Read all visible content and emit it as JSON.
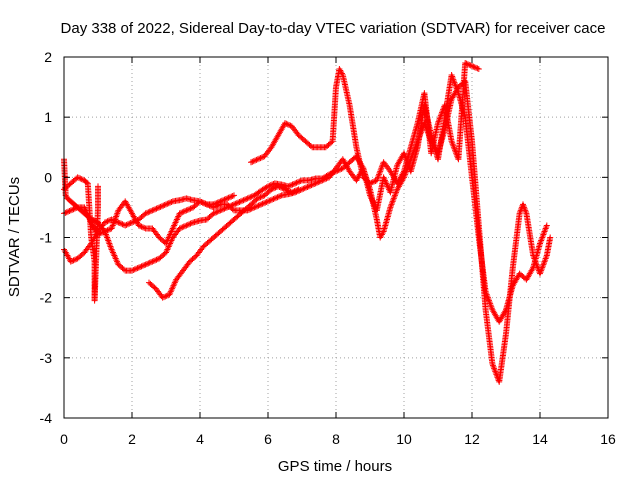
{
  "chart_data": {
    "type": "scatter",
    "title": "Day 338 of 2022, Sidereal Day-to-day VTEC variation (SDTVAR) for receiver cace",
    "xlabel": "GPS time / hours",
    "ylabel": "SDTVAR / TECUs",
    "xlim": [
      0,
      16
    ],
    "ylim": [
      -4,
      2
    ],
    "xticks": [
      0,
      2,
      4,
      6,
      8,
      10,
      12,
      14,
      16
    ],
    "yticks": [
      -4,
      -3,
      -2,
      -1,
      0,
      1,
      2
    ],
    "grid": true,
    "marker": "plus",
    "color": "#ff0000",
    "series": [
      {
        "values": [
          [
            0.0,
            0.3
          ],
          [
            0.05,
            -0.3
          ],
          [
            0.1,
            -0.35
          ],
          [
            0.2,
            -0.4
          ],
          [
            0.3,
            -0.45
          ],
          [
            0.4,
            -0.5
          ],
          [
            0.5,
            -0.55
          ],
          [
            0.6,
            -0.6
          ],
          [
            0.7,
            -0.65
          ],
          [
            0.8,
            -0.7
          ],
          [
            0.9,
            -0.72
          ],
          [
            1.0,
            -0.75
          ],
          [
            1.2,
            -0.9
          ],
          [
            1.4,
            -1.2
          ],
          [
            1.6,
            -1.45
          ],
          [
            1.8,
            -1.55
          ],
          [
            2.0,
            -1.55
          ],
          [
            2.2,
            -1.5
          ],
          [
            2.4,
            -1.45
          ],
          [
            2.6,
            -1.4
          ],
          [
            2.8,
            -1.35
          ],
          [
            3.0,
            -1.25
          ],
          [
            3.2,
            -1.0
          ],
          [
            3.4,
            -0.85
          ],
          [
            3.6,
            -0.8
          ],
          [
            3.8,
            -0.75
          ],
          [
            4.0,
            -0.72
          ],
          [
            4.2,
            -0.7
          ],
          [
            4.4,
            -0.6
          ],
          [
            4.6,
            -0.55
          ],
          [
            4.8,
            -0.5
          ],
          [
            5.0,
            -0.45
          ],
          [
            5.2,
            -0.4
          ],
          [
            5.4,
            -0.35
          ],
          [
            5.6,
            -0.3
          ],
          [
            5.8,
            -0.22
          ],
          [
            6.0,
            -0.15
          ],
          [
            6.2,
            -0.1
          ],
          [
            6.4,
            -0.12
          ],
          [
            6.6,
            -0.15
          ],
          [
            6.8,
            -0.1
          ],
          [
            7.0,
            -0.05
          ],
          [
            7.2,
            -0.05
          ],
          [
            7.4,
            -0.02
          ],
          [
            7.6,
            -0.02
          ],
          [
            7.8,
            0.05
          ],
          [
            8.0,
            0.1
          ],
          [
            8.2,
            0.15
          ],
          [
            8.4,
            0.25
          ],
          [
            8.6,
            0.35
          ],
          [
            8.8,
            0.15
          ],
          [
            9.0,
            -0.2
          ],
          [
            9.2,
            -0.7
          ],
          [
            9.3,
            -1.0
          ],
          [
            9.4,
            -0.9
          ],
          [
            9.6,
            -0.5
          ],
          [
            9.8,
            -0.2
          ],
          [
            10.0,
            0.0
          ],
          [
            10.2,
            0.3
          ],
          [
            10.4,
            0.6
          ],
          [
            10.6,
            0.9
          ],
          [
            10.8,
            0.6
          ],
          [
            11.0,
            0.4
          ],
          [
            11.2,
            0.8
          ],
          [
            11.4,
            1.3
          ],
          [
            11.6,
            1.5
          ],
          [
            11.8,
            1.6
          ],
          [
            12.0,
            0.6
          ],
          [
            12.2,
            -0.8
          ],
          [
            12.4,
            -2.2
          ],
          [
            12.6,
            -3.1
          ],
          [
            12.8,
            -3.4
          ],
          [
            13.0,
            -2.6
          ],
          [
            13.2,
            -1.5
          ],
          [
            13.4,
            -0.6
          ],
          [
            13.5,
            -0.45
          ],
          [
            13.6,
            -0.6
          ],
          [
            13.8,
            -1.3
          ],
          [
            14.0,
            -1.6
          ],
          [
            14.2,
            -1.3
          ],
          [
            14.3,
            -1.0
          ]
        ]
      },
      {
        "values": [
          [
            0.0,
            -0.6
          ],
          [
            0.2,
            -0.55
          ],
          [
            0.4,
            -0.5
          ],
          [
            0.6,
            -0.5
          ],
          [
            0.8,
            -0.75
          ],
          [
            1.0,
            -0.95
          ],
          [
            1.2,
            -0.9
          ],
          [
            1.4,
            -0.85
          ],
          [
            1.6,
            -0.55
          ],
          [
            1.8,
            -0.4
          ],
          [
            2.0,
            -0.6
          ],
          [
            2.2,
            -0.8
          ],
          [
            2.4,
            -0.85
          ],
          [
            2.6,
            -0.85
          ],
          [
            2.8,
            -1.0
          ],
          [
            3.0,
            -1.1
          ],
          [
            3.2,
            -0.85
          ],
          [
            3.4,
            -0.6
          ],
          [
            3.6,
            -0.55
          ],
          [
            3.8,
            -0.5
          ],
          [
            4.0,
            -0.4
          ],
          [
            4.2,
            -0.45
          ],
          [
            4.4,
            -0.5
          ],
          [
            4.6,
            -0.45
          ],
          [
            4.8,
            -0.45
          ],
          [
            5.0,
            -0.55
          ],
          [
            5.2,
            -0.55
          ],
          [
            5.4,
            -0.55
          ],
          [
            5.6,
            -0.5
          ],
          [
            5.8,
            -0.45
          ],
          [
            6.0,
            -0.4
          ],
          [
            6.2,
            -0.35
          ],
          [
            6.4,
            -0.3
          ],
          [
            6.6,
            -0.28
          ],
          [
            6.8,
            -0.25
          ],
          [
            7.0,
            -0.2
          ],
          [
            7.2,
            -0.15
          ],
          [
            7.4,
            -0.1
          ],
          [
            7.6,
            -0.05
          ],
          [
            7.8,
            0.0
          ],
          [
            8.0,
            0.15
          ],
          [
            8.2,
            0.3
          ],
          [
            8.4,
            0.1
          ],
          [
            8.6,
            -0.05
          ],
          [
            8.8,
            0.15
          ],
          [
            9.0,
            -0.3
          ],
          [
            9.2,
            -0.55
          ],
          [
            9.4,
            0.0
          ],
          [
            9.6,
            -0.25
          ],
          [
            9.8,
            0.2
          ],
          [
            10.0,
            0.4
          ],
          [
            10.2,
            0.1
          ],
          [
            10.4,
            0.5
          ],
          [
            10.6,
            1.2
          ],
          [
            10.8,
            0.7
          ],
          [
            11.0,
            0.3
          ],
          [
            11.2,
            1.0
          ],
          [
            11.4,
            1.7
          ],
          [
            11.6,
            1.4
          ],
          [
            11.8,
            1.0
          ],
          [
            12.0,
            0.0
          ],
          [
            12.2,
            -1.0
          ],
          [
            12.4,
            -1.9
          ],
          [
            12.6,
            -2.2
          ],
          [
            12.8,
            -2.4
          ],
          [
            13.0,
            -2.2
          ],
          [
            13.2,
            -1.8
          ],
          [
            13.4,
            -1.6
          ],
          [
            13.6,
            -1.7
          ],
          [
            13.8,
            -1.5
          ],
          [
            14.0,
            -1.1
          ],
          [
            14.2,
            -0.8
          ]
        ]
      },
      {
        "values": [
          [
            0.0,
            -1.2
          ],
          [
            0.1,
            -1.3
          ],
          [
            0.2,
            -1.4
          ],
          [
            0.4,
            -1.35
          ],
          [
            0.6,
            -1.25
          ],
          [
            0.8,
            -1.1
          ],
          [
            1.0,
            -0.9
          ],
          [
            1.2,
            -0.75
          ],
          [
            1.4,
            -0.7
          ],
          [
            1.6,
            -0.75
          ],
          [
            1.8,
            -0.8
          ],
          [
            2.0,
            -0.75
          ],
          [
            2.2,
            -0.7
          ],
          [
            2.4,
            -0.6
          ],
          [
            2.6,
            -0.55
          ],
          [
            2.8,
            -0.5
          ],
          [
            3.0,
            -0.45
          ],
          [
            3.2,
            -0.4
          ],
          [
            3.4,
            -0.38
          ],
          [
            3.6,
            -0.35
          ],
          [
            3.8,
            -0.38
          ],
          [
            4.0,
            -0.4
          ],
          [
            4.2,
            -0.45
          ],
          [
            4.4,
            -0.45
          ],
          [
            4.6,
            -0.4
          ],
          [
            4.8,
            -0.35
          ],
          [
            5.0,
            -0.3
          ]
        ]
      },
      {
        "values": [
          [
            2.5,
            -1.75
          ],
          [
            2.7,
            -1.85
          ],
          [
            2.9,
            -2.0
          ],
          [
            3.1,
            -1.95
          ],
          [
            3.3,
            -1.7
          ],
          [
            3.5,
            -1.55
          ],
          [
            3.7,
            -1.4
          ],
          [
            3.9,
            -1.3
          ],
          [
            4.1,
            -1.15
          ],
          [
            4.3,
            -1.05
          ],
          [
            4.5,
            -0.95
          ],
          [
            4.7,
            -0.85
          ],
          [
            4.9,
            -0.75
          ],
          [
            5.1,
            -0.65
          ],
          [
            5.3,
            -0.55
          ],
          [
            5.5,
            -0.45
          ],
          [
            5.7,
            -0.35
          ],
          [
            5.9,
            -0.3
          ],
          [
            6.1,
            -0.2
          ],
          [
            6.3,
            -0.15
          ],
          [
            6.5,
            -0.2
          ],
          [
            6.7,
            -0.25
          ],
          [
            6.9,
            -0.2
          ]
        ]
      },
      {
        "values": [
          [
            5.5,
            0.25
          ],
          [
            5.7,
            0.3
          ],
          [
            5.9,
            0.35
          ],
          [
            6.1,
            0.5
          ],
          [
            6.3,
            0.7
          ],
          [
            6.5,
            0.9
          ],
          [
            6.7,
            0.85
          ],
          [
            6.9,
            0.7
          ],
          [
            7.1,
            0.6
          ],
          [
            7.3,
            0.5
          ],
          [
            7.5,
            0.5
          ],
          [
            7.7,
            0.5
          ],
          [
            7.9,
            0.6
          ],
          [
            8.0,
            1.5
          ],
          [
            8.1,
            1.8
          ],
          [
            8.2,
            1.7
          ],
          [
            8.4,
            1.2
          ],
          [
            8.6,
            0.5
          ],
          [
            8.8,
            0.0
          ],
          [
            9.0,
            -0.1
          ],
          [
            9.2,
            -0.05
          ],
          [
            9.4,
            0.25
          ],
          [
            9.6,
            0.1
          ],
          [
            9.8,
            -0.1
          ],
          [
            10.0,
            0.1
          ],
          [
            10.2,
            0.5
          ],
          [
            10.4,
            0.9
          ],
          [
            10.6,
            1.4
          ],
          [
            10.8,
            0.4
          ],
          [
            11.0,
            0.9
          ],
          [
            11.2,
            1.2
          ],
          [
            11.4,
            0.6
          ],
          [
            11.6,
            0.3
          ],
          [
            11.8,
            1.9
          ],
          [
            12.0,
            1.85
          ],
          [
            12.2,
            1.8
          ]
        ]
      },
      {
        "values": [
          [
            0.0,
            -0.2
          ],
          [
            0.2,
            -0.1
          ],
          [
            0.4,
            0.0
          ],
          [
            0.6,
            -0.05
          ],
          [
            0.7,
            -0.1
          ],
          [
            0.8,
            -1.0
          ],
          [
            0.9,
            -1.4
          ],
          [
            0.9,
            -1.6
          ],
          [
            0.9,
            -1.85
          ],
          [
            0.9,
            -2.05
          ],
          [
            1.0,
            -0.5
          ],
          [
            1.0,
            -0.15
          ]
        ]
      }
    ]
  }
}
